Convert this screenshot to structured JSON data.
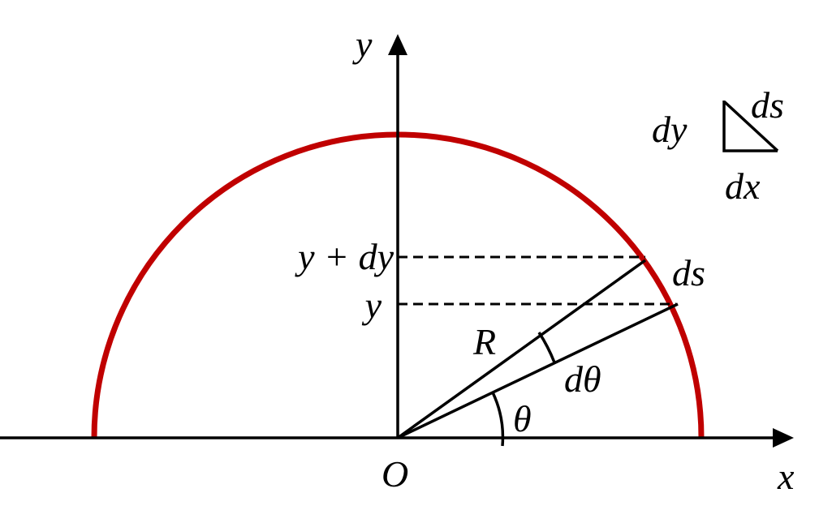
{
  "axes": {
    "x_label": "x",
    "y_label": "y",
    "origin": "O"
  },
  "levels": {
    "upper": "y + dy",
    "lower": "y"
  },
  "labels": {
    "radius": "R",
    "d_theta": "dθ",
    "theta": "θ",
    "arc_element": "ds"
  },
  "triangle": {
    "dy": "dy",
    "ds": "ds",
    "dx": "dx"
  }
}
